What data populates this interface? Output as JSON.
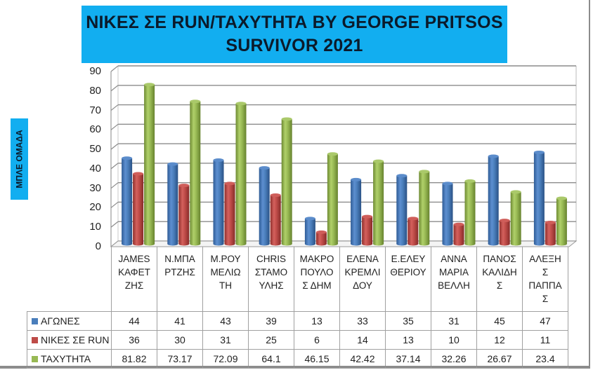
{
  "header": {
    "title_line1": "ΝΙΚΕΣ ΣΕ RUN/ΤΑΧΥΤΗΤΑ  BY GEORGE PRITSOS",
    "title_line2": "SURVIVOR 2021",
    "title_bg": "#12aef0"
  },
  "side_label": "ΜΠΛΕ ΟΜΑΔΑ",
  "yaxis": {
    "ticks": [
      "90",
      "80",
      "70",
      "60",
      "50",
      "40",
      "30",
      "20",
      "10",
      "0"
    ]
  },
  "categories": [
    {
      "lines": [
        "JAMES",
        "ΚΑΦΕΤ",
        "ΖΗΣ"
      ]
    },
    {
      "lines": [
        "Ν.ΜΠΑ",
        "ΡΤΖΗΣ"
      ]
    },
    {
      "lines": [
        "Μ.ΡΟΥ",
        "ΜΕΛΙΩ",
        "ΤΗ"
      ]
    },
    {
      "lines": [
        "CHRIS",
        "ΣΤΑΜΟ",
        "ΥΛΗΣ"
      ]
    },
    {
      "lines": [
        "ΜΑΚΡΟ",
        "ΠΟΥΛΟ",
        "Σ ΔΗΜ"
      ]
    },
    {
      "lines": [
        "ΕΛΕΝΑ",
        "ΚΡΕΜΛΙ",
        "ΔΟΥ"
      ]
    },
    {
      "lines": [
        "Ε.ΕΛΕΥ",
        "ΘΕΡΙΟΥ"
      ]
    },
    {
      "lines": [
        "ΑΝΝΑ",
        "ΜΑΡΙΑ",
        "ΒΕΛΛΗ"
      ]
    },
    {
      "lines": [
        "ΠΑΝΟΣ",
        "ΚΑΛΙΔΗ",
        "Σ"
      ]
    },
    {
      "lines": [
        "ΑΛΕΞΗ",
        "Σ",
        "ΠΑΠΠΑ",
        "Σ"
      ]
    }
  ],
  "table": {
    "rows": [
      {
        "label": "ΑΓΩΝΕΣ",
        "color": "#4a7ebb",
        "values": [
          "44",
          "41",
          "43",
          "39",
          "13",
          "33",
          "35",
          "31",
          "45",
          "47"
        ]
      },
      {
        "label": "ΝΙΚΕΣ ΣΕ RUN",
        "color": "#be4b48",
        "values": [
          "36",
          "30",
          "31",
          "25",
          "6",
          "14",
          "13",
          "10",
          "12",
          "11"
        ]
      },
      {
        "label": "ΤΑΧΥΤΗΤΑ",
        "color": "#98b954",
        "values": [
          "81.82",
          "73.17",
          "72.09",
          "64.1",
          "46.15",
          "42.42",
          "37.14",
          "32.26",
          "26.67",
          "23.4"
        ]
      }
    ]
  },
  "chart_data": {
    "type": "bar",
    "title": "ΝΙΚΕΣ ΣΕ RUN/ΤΑΧΥΤΗΤΑ BY GEORGE PRITSOS SURVIVOR 2021",
    "subtitle": "ΜΠΛΕ ΟΜΑΔΑ",
    "xlabel": "",
    "ylabel": "",
    "ylim": [
      0,
      90
    ],
    "yticks": [
      0,
      10,
      20,
      30,
      40,
      50,
      60,
      70,
      80,
      90
    ],
    "grid": true,
    "legend_position": "data-table",
    "style": "3d-cylinder",
    "categories": [
      "JAMES ΚΑΦΕΤΖΗΣ",
      "Ν.ΜΠΑΡΤΖΗΣ",
      "Μ.ΡΟΥΜΕΛΙΩΤΗ",
      "CHRIS ΣΤΑΜΟΥΛΗΣ",
      "ΜΑΚΡΟΠΟΥΛΟΣ ΔΗΜ",
      "ΕΛΕΝΑ ΚΡΕΜΛΙΔΟΥ",
      "Ε.ΕΛΕΥΘΕΡΙΟΥ",
      "ΑΝΝΑ ΜΑΡΙΑ ΒΕΛΛΗ",
      "ΠΑΝΟΣ ΚΑΛΙΔΗΣ",
      "ΑΛΕΞΗΣ ΠΑΠΠΑΣ"
    ],
    "series": [
      {
        "name": "ΑΓΩΝΕΣ",
        "color": "#4a7ebb",
        "values": [
          44,
          41,
          43,
          39,
          13,
          33,
          35,
          31,
          45,
          47
        ]
      },
      {
        "name": "ΝΙΚΕΣ ΣΕ RUN",
        "color": "#be4b48",
        "values": [
          36,
          30,
          31,
          25,
          6,
          14,
          13,
          10,
          12,
          11
        ]
      },
      {
        "name": "ΤΑΧΥΤΗΤΑ",
        "color": "#98b954",
        "values": [
          81.82,
          73.17,
          72.09,
          64.1,
          46.15,
          42.42,
          37.14,
          32.26,
          26.67,
          23.4
        ]
      }
    ]
  }
}
